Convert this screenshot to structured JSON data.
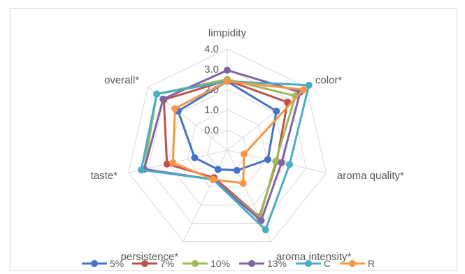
{
  "chart_data": {
    "type": "radar",
    "title": "",
    "axes": [
      "limpidity",
      "color*",
      "aroma quality*",
      "aroma intensity*",
      "persistence*",
      "taste*",
      "overall*"
    ],
    "ticks": [
      "0.0",
      "1.0",
      "2.0",
      "3.0",
      "4.0"
    ],
    "rmin": -1,
    "rmax": 4,
    "grid": true,
    "legend_position": "bottom",
    "series": [
      {
        "name": "5%",
        "color": "#4472C4",
        "values": [
          2.4,
          2.1,
          1.05,
          0.1,
          0.05,
          0.65,
          2.1
        ]
      },
      {
        "name": "7%",
        "color": "#C0504D",
        "values": [
          2.45,
          2.8,
          1.5,
          2.65,
          0.5,
          2.05,
          3.0
        ]
      },
      {
        "name": "10%",
        "color": "#9BBB59",
        "values": [
          2.5,
          3.3,
          1.45,
          2.7,
          0.6,
          3.2,
          3.45
        ]
      },
      {
        "name": "13%",
        "color": "#8064A2",
        "values": [
          2.95,
          3.6,
          1.75,
          2.85,
          0.6,
          3.2,
          3.05
        ]
      },
      {
        "name": "C",
        "color": "#4BACC6",
        "values": [
          2.4,
          4.15,
          2.15,
          3.35,
          0.6,
          3.35,
          3.45
        ]
      },
      {
        "name": "R",
        "color": "#F79646",
        "values": [
          2.4,
          3.8,
          -0.15,
          0.8,
          0.6,
          1.75,
          2.3
        ]
      }
    ]
  }
}
